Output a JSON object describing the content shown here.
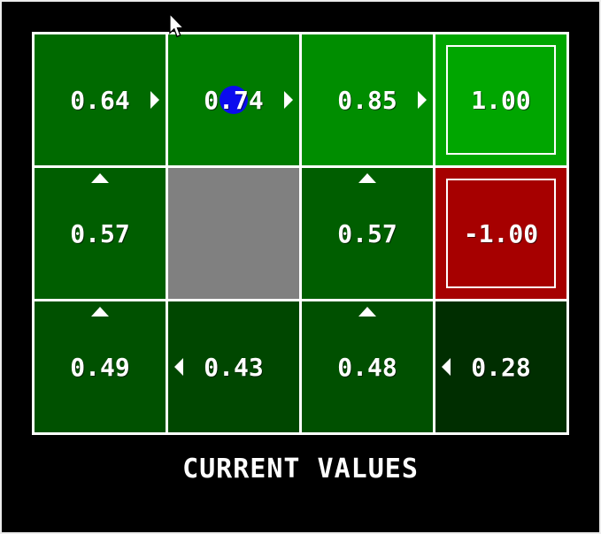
{
  "window": {
    "background": "#000000",
    "frame_color": "#ececec"
  },
  "caption": {
    "label": "CURRENT VALUES"
  },
  "cursor": {
    "icon": "arrow-pointer"
  },
  "grid": {
    "rows": 3,
    "cols": 4,
    "line_color": "#ffffff",
    "wall_color": "#808080",
    "agent_color": "#0b0bee",
    "cells": [
      {
        "row": 0,
        "col": 0,
        "type": "state",
        "value": "0.64",
        "bg": "#006A00",
        "arrow": "right"
      },
      {
        "row": 0,
        "col": 1,
        "type": "state",
        "value": "0.74",
        "bg": "#007B00",
        "arrow": "right",
        "agent": true
      },
      {
        "row": 0,
        "col": 2,
        "type": "state",
        "value": "0.85",
        "bg": "#008D00",
        "arrow": "right"
      },
      {
        "row": 0,
        "col": 3,
        "type": "terminal",
        "value": "1.00",
        "bg": "#00A600"
      },
      {
        "row": 1,
        "col": 0,
        "type": "state",
        "value": "0.57",
        "bg": "#005E00",
        "arrow": "up"
      },
      {
        "row": 1,
        "col": 1,
        "type": "wall"
      },
      {
        "row": 1,
        "col": 2,
        "type": "state",
        "value": "0.57",
        "bg": "#005E00",
        "arrow": "up"
      },
      {
        "row": 1,
        "col": 3,
        "type": "terminal",
        "value": "-1.00",
        "bg": "#A60000"
      },
      {
        "row": 2,
        "col": 0,
        "type": "state",
        "value": "0.49",
        "bg": "#005100",
        "arrow": "up"
      },
      {
        "row": 2,
        "col": 1,
        "type": "state",
        "value": "0.43",
        "bg": "#004700",
        "arrow": "left"
      },
      {
        "row": 2,
        "col": 2,
        "type": "state",
        "value": "0.48",
        "bg": "#005000",
        "arrow": "up"
      },
      {
        "row": 2,
        "col": 3,
        "type": "state",
        "value": "0.28",
        "bg": "#002E00",
        "arrow": "left"
      }
    ]
  }
}
